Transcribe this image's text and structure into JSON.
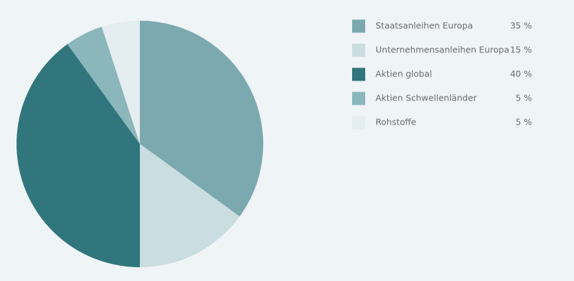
{
  "chart_data": {
    "type": "pie",
    "categories": [
      "Staatsanleihen Europa",
      "Unternehmensanleihen Europa",
      "Aktien global",
      "Aktien Schwellenländer",
      "Rohstoffe"
    ],
    "values": [
      35,
      15,
      40,
      5,
      5
    ],
    "value_labels": [
      "35 %",
      "15 %",
      "40 %",
      "5 %",
      "5 %"
    ],
    "colors": [
      "#7ba9af",
      "#cadde1",
      "#31767c",
      "#8ab6bc",
      "#e4edef"
    ]
  }
}
